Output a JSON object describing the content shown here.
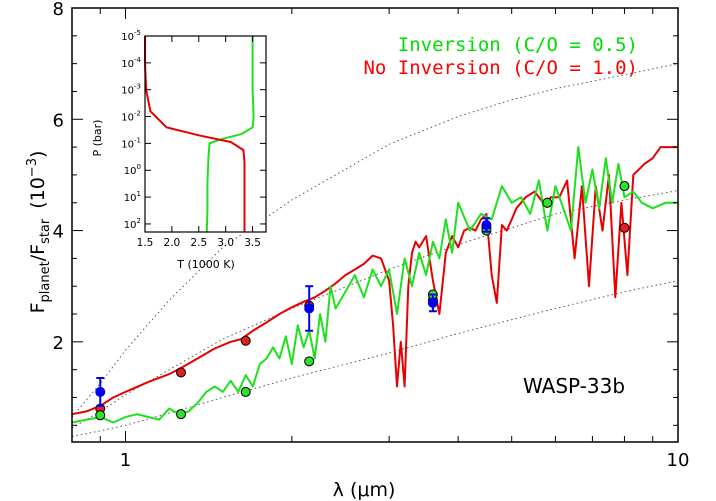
{
  "chart_data": [
    {
      "type": "line",
      "label": "WASP-33b",
      "xlabel_lambda": "λ",
      "xlabel_unit": "(μm)",
      "ylabel_main": "F",
      "ylabel_sub_planet": "planet",
      "ylabel_slash": "/F",
      "ylabel_sub_star": "star",
      "ylabel_power": "(10",
      "ylabel_exp": "−3",
      "ylabel_close": ")",
      "xscale": "log",
      "xlim": [
        0.8,
        10
      ],
      "ylim": [
        0.2,
        8
      ],
      "x_ticks": [
        {
          "v": 1,
          "label": "1"
        },
        {
          "v": 10,
          "label": "10"
        }
      ],
      "y_ticks": [
        {
          "v": 2,
          "label": "2"
        },
        {
          "v": 4,
          "label": "4"
        },
        {
          "v": 6,
          "label": "6"
        },
        {
          "v": 8,
          "label": "8"
        }
      ],
      "legend": [
        {
          "text": "Inversion (C/O = 0.5)",
          "color": "#00e000"
        },
        {
          "text": "No Inversion (C/O = 1.0)",
          "color": "#ff0000"
        }
      ],
      "legend_position": "top-right",
      "colors": {
        "inversion": "#1ee01e",
        "no_inversion": "#e80000",
        "observed": "#0000ee",
        "blackbody": "#555555"
      },
      "blackbody_curves": [
        {
          "x": [
            0.8,
            0.9,
            1.0,
            1.2,
            1.5,
            2.0,
            3.0,
            4.0,
            5.0,
            6.0,
            8.0,
            10.0
          ],
          "y": [
            0.65,
            1.25,
            1.85,
            2.75,
            3.7,
            4.55,
            5.55,
            6.05,
            6.35,
            6.55,
            6.8,
            7.0
          ]
        },
        {
          "x": [
            0.8,
            0.9,
            1.0,
            1.2,
            1.5,
            2.0,
            3.0,
            4.0,
            5.0,
            6.0,
            8.0,
            10.0
          ],
          "y": [
            0.45,
            0.75,
            1.05,
            1.5,
            2.05,
            2.6,
            3.3,
            3.75,
            4.05,
            4.3,
            4.55,
            4.72
          ]
        },
        {
          "x": [
            0.8,
            0.9,
            1.0,
            1.2,
            1.5,
            2.0,
            3.0,
            4.0,
            5.0,
            6.0,
            8.0,
            10.0
          ],
          "y": [
            0.3,
            0.4,
            0.5,
            0.72,
            1.0,
            1.35,
            1.8,
            2.15,
            2.4,
            2.6,
            2.9,
            3.1
          ]
        }
      ],
      "series": [
        {
          "name": "No Inversion (C/O = 1.0)",
          "x": [
            0.8,
            0.85,
            0.9,
            0.95,
            1.0,
            1.1,
            1.2,
            1.27,
            1.35,
            1.45,
            1.55,
            1.62,
            1.7,
            1.8,
            1.9,
            2.0,
            2.1,
            2.2,
            2.3,
            2.4,
            2.5,
            2.6,
            2.7,
            2.8,
            2.9,
            3.0,
            3.05,
            3.1,
            3.15,
            3.2,
            3.25,
            3.3,
            3.35,
            3.4,
            3.5,
            3.6,
            3.7,
            3.8,
            3.9,
            4.0,
            4.1,
            4.2,
            4.3,
            4.4,
            4.5,
            4.6,
            4.7,
            4.8,
            4.9,
            5.0,
            5.1,
            5.2,
            5.3,
            5.5,
            5.7,
            5.9,
            6.1,
            6.3,
            6.5,
            6.7,
            6.9,
            7.1,
            7.3,
            7.5,
            7.7,
            7.9,
            8.1,
            8.3,
            8.5,
            8.7,
            9.0,
            9.3,
            9.6,
            10.0
          ],
          "y": [
            0.7,
            0.75,
            0.85,
            1.0,
            1.1,
            1.28,
            1.42,
            1.55,
            1.7,
            1.88,
            2.0,
            2.05,
            2.2,
            2.35,
            2.5,
            2.62,
            2.72,
            2.8,
            2.92,
            3.05,
            3.2,
            3.3,
            3.4,
            3.55,
            3.5,
            3.1,
            2.3,
            1.2,
            2.0,
            1.2,
            3.0,
            3.6,
            3.8,
            3.7,
            3.9,
            3.1,
            2.5,
            3.6,
            3.9,
            3.7,
            4.0,
            4.05,
            4.0,
            4.2,
            4.3,
            3.2,
            2.7,
            4.1,
            4.0,
            4.2,
            4.4,
            4.5,
            4.6,
            4.7,
            4.5,
            4.6,
            4.6,
            4.9,
            3.5,
            4.8,
            3.0,
            4.8,
            4.0,
            5.0,
            2.8,
            4.5,
            3.2,
            5.0,
            5.1,
            5.2,
            5.3,
            5.5,
            5.5,
            5.5
          ]
        },
        {
          "name": "Inversion (C/O = 0.5)",
          "x": [
            0.8,
            0.85,
            0.9,
            0.95,
            1.0,
            1.05,
            1.1,
            1.15,
            1.2,
            1.25,
            1.3,
            1.35,
            1.4,
            1.45,
            1.5,
            1.55,
            1.6,
            1.65,
            1.7,
            1.75,
            1.8,
            1.85,
            1.9,
            1.95,
            2.0,
            2.05,
            2.1,
            2.15,
            2.2,
            2.25,
            2.3,
            2.35,
            2.4,
            2.5,
            2.6,
            2.7,
            2.8,
            2.9,
            3.0,
            3.1,
            3.2,
            3.3,
            3.4,
            3.5,
            3.6,
            3.7,
            3.8,
            3.9,
            4.0,
            4.2,
            4.4,
            4.6,
            4.8,
            5.0,
            5.2,
            5.4,
            5.6,
            5.8,
            6.0,
            6.2,
            6.4,
            6.6,
            6.8,
            7.0,
            7.2,
            7.4,
            7.6,
            7.8,
            8.0,
            8.3,
            8.6,
            9.0,
            9.5,
            10.0
          ],
          "y": [
            0.55,
            0.6,
            0.65,
            0.55,
            0.65,
            0.7,
            0.65,
            0.6,
            0.8,
            0.7,
            0.75,
            0.9,
            1.1,
            1.2,
            1.1,
            1.3,
            1.1,
            1.4,
            1.2,
            1.6,
            1.7,
            1.9,
            1.7,
            2.1,
            1.6,
            2.3,
            1.9,
            2.2,
            1.7,
            2.5,
            2.0,
            3.0,
            2.6,
            2.9,
            3.2,
            2.8,
            3.3,
            3.0,
            3.3,
            2.5,
            3.5,
            3.0,
            3.6,
            3.2,
            3.8,
            3.5,
            4.2,
            3.6,
            4.5,
            4.0,
            4.3,
            4.2,
            4.8,
            4.5,
            4.6,
            4.3,
            4.9,
            4.0,
            4.8,
            4.4,
            4.0,
            5.5,
            4.5,
            5.1,
            4.4,
            5.3,
            4.5,
            5.2,
            4.6,
            4.7,
            4.5,
            4.4,
            4.5,
            4.5
          ]
        }
      ],
      "band_points_no_inversion": [
        {
          "x": 0.9,
          "y": 0.8
        },
        {
          "x": 1.26,
          "y": 1.45
        },
        {
          "x": 1.65,
          "y": 2.02
        },
        {
          "x": 2.15,
          "y": 2.65
        },
        {
          "x": 3.6,
          "y": 2.75
        },
        {
          "x": 4.5,
          "y": 4.05
        },
        {
          "x": 5.8,
          "y": 4.5
        },
        {
          "x": 8.0,
          "y": 4.05
        }
      ],
      "band_points_inversion": [
        {
          "x": 0.9,
          "y": 0.68
        },
        {
          "x": 1.26,
          "y": 0.7
        },
        {
          "x": 1.65,
          "y": 1.1
        },
        {
          "x": 2.15,
          "y": 1.65
        },
        {
          "x": 3.6,
          "y": 2.85
        },
        {
          "x": 4.5,
          "y": 4.0
        },
        {
          "x": 5.8,
          "y": 4.5
        },
        {
          "x": 8.0,
          "y": 4.8
        }
      ],
      "observations": [
        {
          "x": 0.9,
          "y": 1.1,
          "err": 0.25
        },
        {
          "x": 2.15,
          "y": 2.6,
          "err": 0.4
        },
        {
          "x": 3.6,
          "y": 2.7,
          "err": 0.15
        },
        {
          "x": 4.5,
          "y": 4.1,
          "err": 0.12
        }
      ]
    },
    {
      "type": "line",
      "xlabel": "T (1000 K)",
      "ylabel": "P (bar)",
      "xlim": [
        1.5,
        3.75
      ],
      "yscale": "log",
      "yinvert": true,
      "ylim_exp": [
        -5,
        2.3
      ],
      "x_ticks": [
        {
          "v": 1.5,
          "label": "1.5"
        },
        {
          "v": 2.0,
          "label": "2.0"
        },
        {
          "v": 2.5,
          "label": "2.5"
        },
        {
          "v": 3.0,
          "label": "3.0"
        },
        {
          "v": 3.5,
          "label": "3.5"
        }
      ],
      "y_ticks": [
        {
          "e": -5,
          "label": "-5"
        },
        {
          "e": -4,
          "label": "-4"
        },
        {
          "e": -3,
          "label": "-3"
        },
        {
          "e": -2,
          "label": "-2"
        },
        {
          "e": -1,
          "label": "-1"
        },
        {
          "e": 0,
          "label": "0"
        },
        {
          "e": 1,
          "label": "1"
        },
        {
          "e": 2,
          "label": "2"
        }
      ],
      "y_tick_base": "10",
      "series": [
        {
          "name": "Inversion",
          "T": [
            3.5,
            3.5,
            3.5,
            3.52,
            3.5,
            3.3,
            2.9,
            2.7,
            2.68,
            2.66,
            2.66,
            2.65
          ],
          "logP": [
            -5,
            -4,
            -3,
            -2,
            -1.6,
            -1.35,
            -1.15,
            -1.0,
            -0.5,
            0.5,
            1.5,
            2.3
          ]
        },
        {
          "name": "No Inversion",
          "T": [
            1.5,
            1.5,
            1.52,
            1.6,
            1.9,
            2.5,
            3.1,
            3.33,
            3.35,
            3.35,
            3.35,
            3.35
          ],
          "logP": [
            -5,
            -4,
            -3,
            -2.2,
            -1.6,
            -1.3,
            -1.05,
            -0.75,
            -0.3,
            0.5,
            1.5,
            2.3
          ]
        }
      ]
    }
  ]
}
